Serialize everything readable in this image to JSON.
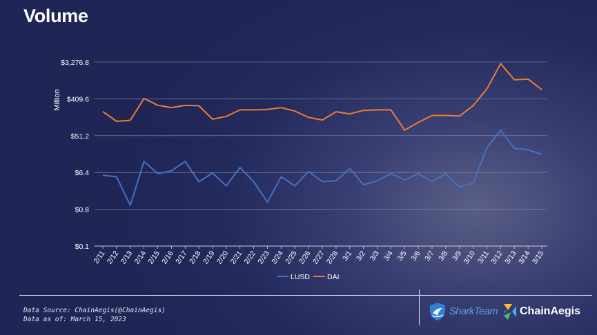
{
  "title": "Volume",
  "footer": {
    "source_line": "Data Source: ChainAegis(@ChainAegis)",
    "date_line": "Data as of: March 15, 2023",
    "logo_left": "SharkTeam",
    "logo_right": "ChainAegis"
  },
  "colors": {
    "lusd": "#4472c4",
    "dai": "#ed7d31",
    "grid": "#8a90b4"
  },
  "chart_data": {
    "type": "line",
    "title": "Volume",
    "xlabel": "",
    "ylabel": "Million",
    "y_scale": "log2",
    "ylim": [
      0.1,
      3276.8
    ],
    "y_ticks": [
      0.1,
      0.8,
      6.4,
      51.2,
      409.6,
      3276.8
    ],
    "y_tick_labels": [
      "$0.1",
      "$0.8",
      "$6.4",
      "$51.2",
      "$409.6",
      "$3,276.8"
    ],
    "grid": true,
    "legend_position": "bottom",
    "categories": [
      "2/11",
      "2/12",
      "2/13",
      "2/14",
      "2/15",
      "2/16",
      "2/17",
      "2/18",
      "2/19",
      "2/20",
      "2/21",
      "2/22",
      "2/23",
      "2/24",
      "2/25",
      "2/26",
      "2/27",
      "2/28",
      "3/1",
      "3/2",
      "3/3",
      "3/4",
      "3/5",
      "3/6",
      "3/7",
      "3/8",
      "3/9",
      "3/10",
      "3/11",
      "3/12",
      "3/13",
      "3/14",
      "3/15"
    ],
    "series": [
      {
        "name": "LUSD",
        "values": [
          5.5,
          5.0,
          1.0,
          12.0,
          6.0,
          7.0,
          12.0,
          3.8,
          6.2,
          3.0,
          8.5,
          3.8,
          1.2,
          5.0,
          3.0,
          6.8,
          3.8,
          4.0,
          8.0,
          3.2,
          4.0,
          6.0,
          4.2,
          6.0,
          3.8,
          6.0,
          2.8,
          3.5,
          26.0,
          70.0,
          25.0,
          23.0,
          18.0
        ]
      },
      {
        "name": "DAI",
        "values": [
          200,
          115,
          122,
          420,
          285,
          250,
          283,
          278,
          130,
          152,
          220,
          220,
          225,
          250,
          205,
          143,
          124,
          198,
          175,
          213,
          220,
          220,
          70,
          108,
          160,
          160,
          155,
          280,
          720,
          3000,
          1200,
          1250,
          690
        ]
      }
    ]
  }
}
